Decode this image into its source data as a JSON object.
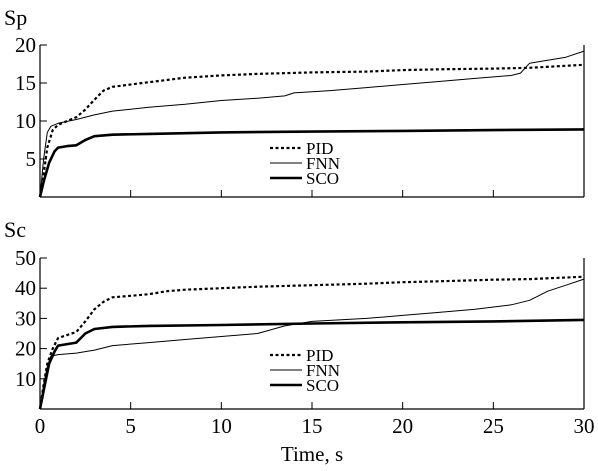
{
  "chart_data": [
    {
      "type": "line",
      "title": "",
      "ylabel": "Sp",
      "xlabel": "",
      "xlim": [
        0,
        30
      ],
      "ylim": [
        0,
        20
      ],
      "yticks": [
        5,
        10,
        15,
        20
      ],
      "xticks": [
        0,
        5,
        10,
        15,
        20,
        25,
        30
      ],
      "grid": false,
      "legend": "center",
      "series": [
        {
          "name": "PID",
          "style": "dotted",
          "x": [
            0,
            0.2,
            0.4,
            0.7,
            1.0,
            1.5,
            2.0,
            2.5,
            3.0,
            3.5,
            4.0,
            5.0,
            6.0,
            7.0,
            8.0,
            10.0,
            12.0,
            15.0,
            18.0,
            20.0,
            22.0,
            25.0,
            27.0,
            28.5,
            30.0
          ],
          "values": [
            0,
            3.0,
            6.5,
            8.8,
            9.5,
            10.0,
            10.5,
            11.5,
            12.8,
            14.0,
            14.5,
            14.8,
            15.1,
            15.4,
            15.7,
            16.0,
            16.2,
            16.4,
            16.5,
            16.7,
            16.8,
            16.9,
            17.0,
            17.2,
            17.4
          ]
        },
        {
          "name": "FNN",
          "style": "thin",
          "x": [
            0,
            0.2,
            0.4,
            0.6,
            1.0,
            2.0,
            3.0,
            4.0,
            6.0,
            8.0,
            10.0,
            12.0,
            13.5,
            14.0,
            16.0,
            18.0,
            20.0,
            22.0,
            24.0,
            26.0,
            26.5,
            27.0,
            28.0,
            29.0,
            30.0
          ],
          "values": [
            0,
            5.0,
            8.5,
            9.3,
            9.7,
            10.2,
            10.8,
            11.3,
            11.8,
            12.2,
            12.7,
            13.0,
            13.3,
            13.7,
            14.0,
            14.4,
            14.8,
            15.2,
            15.6,
            16.0,
            16.3,
            17.6,
            18.0,
            18.4,
            19.2
          ]
        },
        {
          "name": "SCO",
          "style": "thick",
          "x": [
            0,
            0.2,
            0.5,
            0.8,
            1.0,
            1.5,
            2.0,
            2.5,
            3.0,
            4.0,
            6.0,
            10.0,
            15.0,
            20.0,
            25.0,
            30.0
          ],
          "values": [
            0,
            2.0,
            4.5,
            6.0,
            6.5,
            6.7,
            6.8,
            7.5,
            8.0,
            8.2,
            8.3,
            8.5,
            8.6,
            8.7,
            8.8,
            8.9
          ]
        }
      ]
    },
    {
      "type": "line",
      "title": "",
      "ylabel": "Sc",
      "xlabel": "Time, s",
      "xlim": [
        0,
        30
      ],
      "ylim": [
        0,
        50
      ],
      "yticks": [
        10,
        20,
        30,
        40,
        50
      ],
      "xticks": [
        0,
        5,
        10,
        15,
        20,
        25,
        30
      ],
      "grid": false,
      "legend": "center",
      "series": [
        {
          "name": "PID",
          "style": "dotted",
          "x": [
            0,
            0.2,
            0.4,
            0.7,
            1.0,
            1.5,
            2.0,
            2.5,
            3.0,
            3.5,
            4.0,
            5.0,
            6.0,
            7.0,
            8.0,
            10.0,
            12.0,
            15.0,
            18.0,
            20.0,
            22.0,
            25.0,
            27.0,
            30.0
          ],
          "values": [
            0,
            8.0,
            15.0,
            20.0,
            23.5,
            24.5,
            25.5,
            29.0,
            33.0,
            35.5,
            37.0,
            37.5,
            38.0,
            39.0,
            39.5,
            40.0,
            40.5,
            41.0,
            41.5,
            42.0,
            42.3,
            42.8,
            43.0,
            43.8
          ]
        },
        {
          "name": "FNN",
          "style": "thin",
          "x": [
            0,
            0.2,
            0.4,
            0.6,
            1.0,
            2.0,
            3.0,
            4.0,
            6.0,
            8.0,
            10.0,
            12.0,
            13.5,
            15.0,
            18.0,
            20.0,
            22.0,
            24.0,
            26.0,
            27.0,
            28.0,
            29.0,
            30.0
          ],
          "values": [
            0,
            8.0,
            14.0,
            17.5,
            18.0,
            18.5,
            19.5,
            21.0,
            22.0,
            23.0,
            24.0,
            25.0,
            27.5,
            29.0,
            30.0,
            31.0,
            32.0,
            33.0,
            34.5,
            36.0,
            39.0,
            41.0,
            43.0
          ]
        },
        {
          "name": "SCO",
          "style": "thick",
          "x": [
            0,
            0.2,
            0.5,
            0.8,
            1.0,
            1.5,
            2.0,
            2.5,
            3.0,
            4.0,
            6.0,
            10.0,
            15.0,
            20.0,
            25.0,
            30.0
          ],
          "values": [
            0,
            6.0,
            15.0,
            19.0,
            21.0,
            21.5,
            22.0,
            25.0,
            26.5,
            27.2,
            27.5,
            27.8,
            28.3,
            28.7,
            29.0,
            29.5
          ]
        }
      ]
    }
  ]
}
